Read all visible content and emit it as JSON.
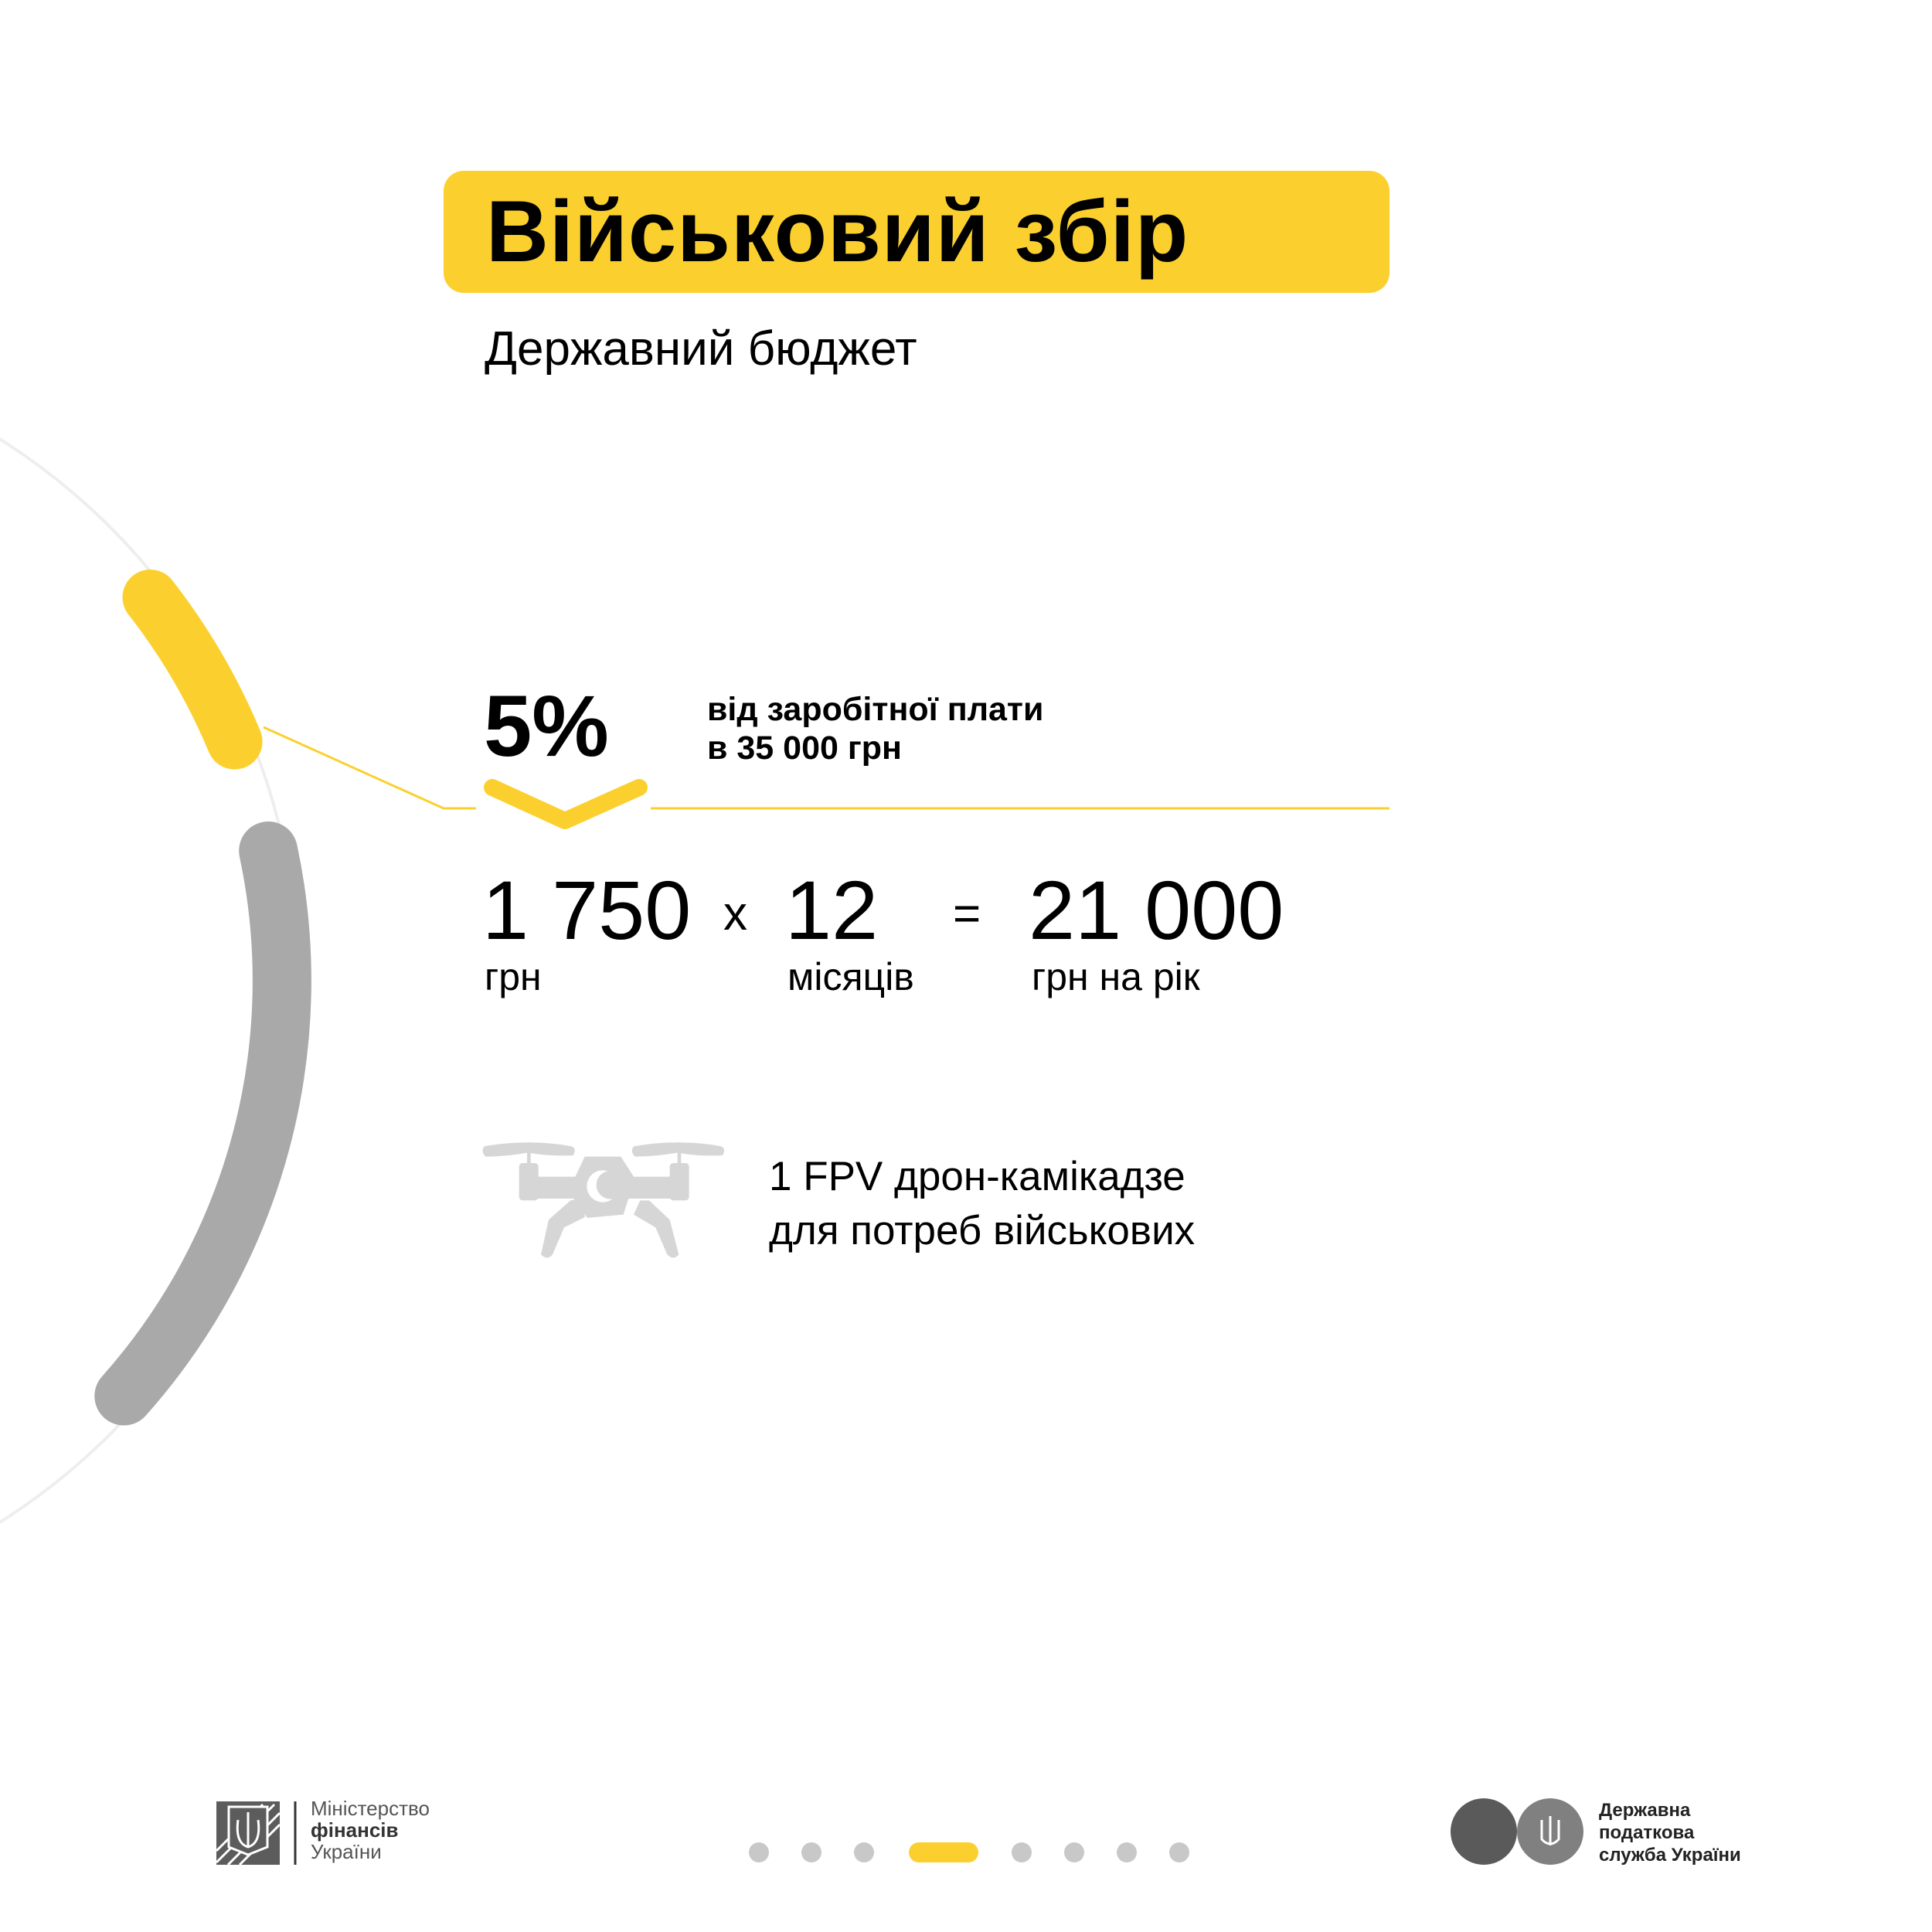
{
  "colors": {
    "accent": "#FBD02E",
    "arc_gray": "#A9A9A9",
    "icon_gray": "#D6D6D6",
    "text": "#000000"
  },
  "header": {
    "title": "Військовий збір",
    "subtitle": "Державний бюджет"
  },
  "rate": {
    "percent": "5%",
    "description_line1": "від заробітної плати",
    "description_line2": "в 35 000 грн"
  },
  "calculation": {
    "monthly_value": "1 750",
    "monthly_unit": "грн",
    "multiply_sign": "x",
    "months_value": "12",
    "months_unit": "місяців",
    "equals_sign": "=",
    "annual_value": "21 000",
    "annual_unit": "грн на рік"
  },
  "equivalent": {
    "icon": "drone-icon",
    "line1": "1 FPV дрон-камікадзе",
    "line2": "для потреб військових"
  },
  "pagination": {
    "total": 8,
    "active": 4
  },
  "footer": {
    "ministry": {
      "line1": "Міністерство",
      "line2": "фінансів",
      "line3": "України",
      "icon": "trident-emblem-icon"
    },
    "tax_service": {
      "line1": "Державна",
      "line2": "податкова",
      "line3": "служба України",
      "icon": "trident-emblem-icon"
    }
  }
}
